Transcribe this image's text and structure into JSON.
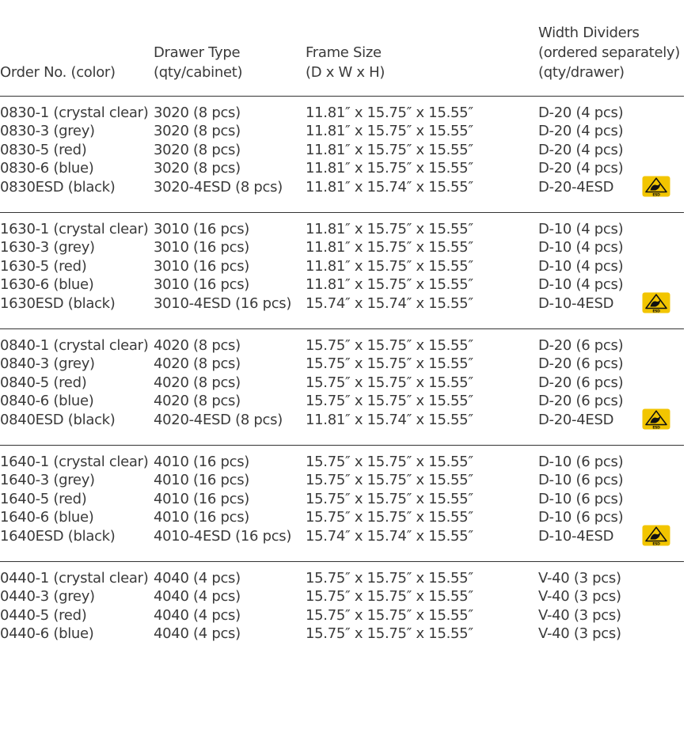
{
  "header": {
    "col1": [
      "Order No. (color)"
    ],
    "col2": [
      "Drawer Type",
      "(qty/cabinet)"
    ],
    "col3": [
      "Frame Size",
      "(D x W x H)"
    ],
    "col4": [
      "Width Dividers",
      "(ordered separately)",
      "(qty/drawer)"
    ]
  },
  "icons": {
    "esd": "esd-warning-icon",
    "esd_color": "#f2c500"
  },
  "groups": [
    {
      "rows": [
        {
          "order": "0830-1 (crystal clear)",
          "drawer": "3020 (8 pcs)",
          "frame": "11.81″ x 15.75″ x 15.55″",
          "dividers": "D-20 (4 pcs)"
        },
        {
          "order": "0830-3 (grey)",
          "drawer": "3020 (8 pcs)",
          "frame": "11.81″ x 15.75″ x 15.55″",
          "dividers": "D-20 (4 pcs)"
        },
        {
          "order": "0830-5 (red)",
          "drawer": "3020 (8 pcs)",
          "frame": "11.81″ x 15.75″ x 15.55″",
          "dividers": "D-20 (4 pcs)"
        },
        {
          "order": "0830-6 (blue)",
          "drawer": "3020 (8 pcs)",
          "frame": "11.81″ x 15.75″ x 15.55″",
          "dividers": "D-20 (4 pcs)"
        },
        {
          "order": "0830ESD (black)",
          "drawer": "3020-4ESD (8 pcs)",
          "frame": "11.81″ x 15.74″ x 15.55″",
          "dividers": "D-20-4ESD",
          "esd": true
        }
      ]
    },
    {
      "rows": [
        {
          "order": "1630-1 (crystal clear)",
          "drawer": "3010 (16 pcs)",
          "frame": "11.81″ x 15.75″ x 15.55″",
          "dividers": "D-10 (4 pcs)"
        },
        {
          "order": "1630-3 (grey)",
          "drawer": "3010 (16 pcs)",
          "frame": "11.81″ x 15.75″ x 15.55″",
          "dividers": "D-10 (4 pcs)"
        },
        {
          "order": "1630-5 (red)",
          "drawer": "3010 (16 pcs)",
          "frame": "11.81″ x 15.75″ x 15.55″",
          "dividers": "D-10 (4 pcs)"
        },
        {
          "order": "1630-6 (blue)",
          "drawer": "3010 (16 pcs)",
          "frame": "11.81″ x 15.75″ x 15.55″",
          "dividers": "D-10 (4 pcs)"
        },
        {
          "order": "1630ESD (black)",
          "drawer": "3010-4ESD (16 pcs)",
          "frame": "15.74″ x 15.74″ x 15.55″",
          "dividers": "D-10-4ESD",
          "esd": true
        }
      ]
    },
    {
      "rows": [
        {
          "order": "0840-1 (crystal clear)",
          "drawer": "4020 (8 pcs)",
          "frame": "15.75″ x 15.75″ x 15.55″",
          "dividers": "D-20 (6 pcs)"
        },
        {
          "order": "0840-3 (grey)",
          "drawer": "4020 (8 pcs)",
          "frame": "15.75″ x 15.75″ x 15.55″",
          "dividers": "D-20 (6 pcs)"
        },
        {
          "order": "0840-5 (red)",
          "drawer": "4020 (8 pcs)",
          "frame": "15.75″ x 15.75″ x 15.55″",
          "dividers": "D-20 (6 pcs)"
        },
        {
          "order": "0840-6 (blue)",
          "drawer": "4020 (8 pcs)",
          "frame": "15.75″ x 15.75″ x 15.55″",
          "dividers": "D-20 (6 pcs)"
        },
        {
          "order": "0840ESD (black)",
          "drawer": "4020-4ESD (8 pcs)",
          "frame": "11.81″ x 15.74″ x 15.55″",
          "dividers": "D-20-4ESD",
          "esd": true
        }
      ]
    },
    {
      "rows": [
        {
          "order": "1640-1 (crystal clear)",
          "drawer": "4010 (16 pcs)",
          "frame": "15.75″ x 15.75″ x 15.55″",
          "dividers": "D-10 (6 pcs)"
        },
        {
          "order": "1640-3 (grey)",
          "drawer": "4010 (16 pcs)",
          "frame": "15.75″ x 15.75″ x 15.55″",
          "dividers": "D-10 (6 pcs)"
        },
        {
          "order": "1640-5 (red)",
          "drawer": "4010 (16 pcs)",
          "frame": "15.75″ x 15.75″ x 15.55″",
          "dividers": "D-10 (6 pcs)"
        },
        {
          "order": "1640-6 (blue)",
          "drawer": "4010 (16 pcs)",
          "frame": "15.75″ x 15.75″ x 15.55″",
          "dividers": "D-10 (6 pcs)"
        },
        {
          "order": "1640ESD (black)",
          "drawer": "4010-4ESD (16 pcs)",
          "frame": "15.74″ x 15.74″ x 15.55″",
          "dividers": "D-10-4ESD",
          "esd": true
        }
      ]
    },
    {
      "rows": [
        {
          "order": "0440-1 (crystal clear)",
          "drawer": "4040 (4 pcs)",
          "frame": "15.75″ x 15.75″ x 15.55″",
          "dividers": "V-40 (3 pcs)"
        },
        {
          "order": "0440-3 (grey)",
          "drawer": "4040 (4 pcs)",
          "frame": "15.75″ x 15.75″ x 15.55″",
          "dividers": "V-40 (3 pcs)"
        },
        {
          "order": "0440-5 (red)",
          "drawer": "4040 (4 pcs)",
          "frame": "15.75″ x 15.75″ x 15.55″",
          "dividers": "V-40 (3 pcs)"
        },
        {
          "order": "0440-6 (blue)",
          "drawer": "4040 (4 pcs)",
          "frame": "15.75″ x 15.75″ x 15.55″",
          "dividers": "V-40 (3 pcs)"
        }
      ]
    }
  ]
}
